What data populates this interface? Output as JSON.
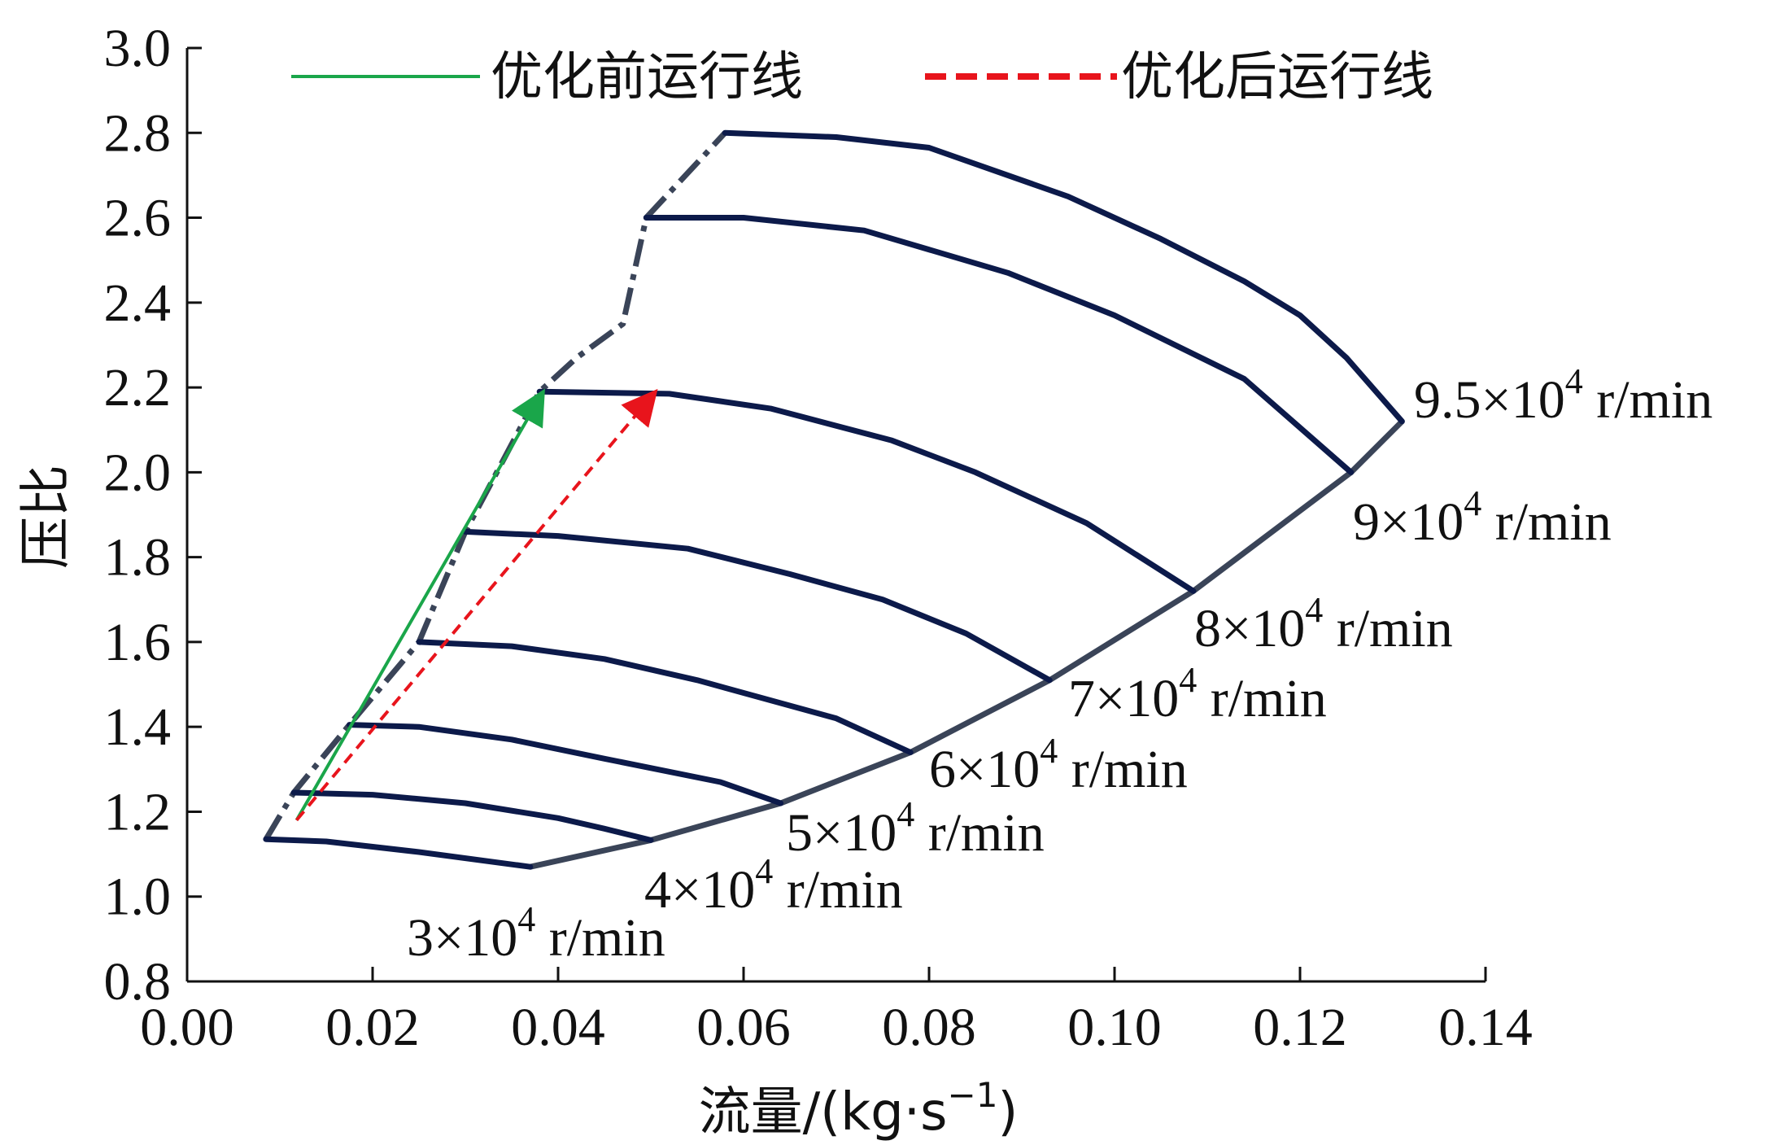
{
  "chart_data": {
    "type": "line",
    "xlabel": "流量/(kg·s",
    "xlabel_sup": "−1",
    "xlabel_suffix": ")",
    "ylabel": "压比",
    "xlim": [
      0.0,
      0.14
    ],
    "ylim": [
      0.8,
      3.0
    ],
    "xticks": [
      "0.00",
      "0.02",
      "0.04",
      "0.06",
      "0.08",
      "0.10",
      "0.12",
      "0.14"
    ],
    "yticks": [
      "0.8",
      "1.0",
      "1.2",
      "1.4",
      "1.6",
      "1.8",
      "2.0",
      "2.2",
      "2.4",
      "2.6",
      "2.8",
      "3.0"
    ],
    "grid": false,
    "legend_position": "top",
    "legend": [
      {
        "label": "优化前运行线",
        "color": "#1aa64a",
        "style": "solid"
      },
      {
        "label": "优化后运行线",
        "color": "#e8141c",
        "style": "dashed"
      }
    ],
    "colors": {
      "speed_line": "#0c1a4a",
      "surge_line": "#3a4458",
      "choke_line": "#3a4458",
      "before_line": "#1aa64a",
      "after_line": "#e8141c"
    },
    "speed_lines": [
      {
        "base": "3×10",
        "exp": "4",
        "unit": " r/min",
        "points": [
          [
            0.0085,
            1.135
          ],
          [
            0.015,
            1.13
          ],
          [
            0.025,
            1.105
          ],
          [
            0.037,
            1.07
          ]
        ]
      },
      {
        "base": "4×10",
        "exp": "4",
        "unit": " r/min",
        "points": [
          [
            0.0115,
            1.245
          ],
          [
            0.02,
            1.24
          ],
          [
            0.03,
            1.22
          ],
          [
            0.04,
            1.185
          ],
          [
            0.045,
            1.16
          ],
          [
            0.05,
            1.133
          ]
        ]
      },
      {
        "base": "5×10",
        "exp": "4",
        "unit": " r/min",
        "points": [
          [
            0.0175,
            1.405
          ],
          [
            0.025,
            1.4
          ],
          [
            0.035,
            1.37
          ],
          [
            0.045,
            1.325
          ],
          [
            0.0575,
            1.27
          ],
          [
            0.064,
            1.22
          ]
        ]
      },
      {
        "base": "6×10",
        "exp": "4",
        "unit": " r/min",
        "points": [
          [
            0.025,
            1.6
          ],
          [
            0.035,
            1.59
          ],
          [
            0.045,
            1.56
          ],
          [
            0.055,
            1.51
          ],
          [
            0.07,
            1.42
          ],
          [
            0.078,
            1.34
          ]
        ]
      },
      {
        "base": "7×10",
        "exp": "4",
        "unit": " r/min",
        "points": [
          [
            0.03,
            1.86
          ],
          [
            0.04,
            1.85
          ],
          [
            0.054,
            1.82
          ],
          [
            0.065,
            1.76
          ],
          [
            0.075,
            1.7
          ],
          [
            0.084,
            1.62
          ],
          [
            0.093,
            1.51
          ]
        ]
      },
      {
        "base": "8×10",
        "exp": "4",
        "unit": " r/min",
        "points": [
          [
            0.038,
            2.19
          ],
          [
            0.052,
            2.185
          ],
          [
            0.063,
            2.15
          ],
          [
            0.076,
            2.075
          ],
          [
            0.085,
            2.0
          ],
          [
            0.097,
            1.88
          ],
          [
            0.1085,
            1.72
          ]
        ]
      },
      {
        "base": "9×10",
        "exp": "4",
        "unit": " r/min",
        "points": [
          [
            0.0495,
            2.6
          ],
          [
            0.06,
            2.6
          ],
          [
            0.073,
            2.57
          ],
          [
            0.0885,
            2.47
          ],
          [
            0.1,
            2.37
          ],
          [
            0.114,
            2.22
          ],
          [
            0.1255,
            2.0
          ]
        ]
      },
      {
        "base": "9.5×10",
        "exp": "4",
        "unit": " r/min",
        "points": [
          [
            0.058,
            2.8
          ],
          [
            0.07,
            2.79
          ],
          [
            0.08,
            2.765
          ],
          [
            0.095,
            2.65
          ],
          [
            0.105,
            2.55
          ],
          [
            0.114,
            2.45
          ],
          [
            0.12,
            2.37
          ],
          [
            0.125,
            2.27
          ],
          [
            0.131,
            2.12
          ]
        ]
      }
    ],
    "surge_line": [
      [
        0.0085,
        1.135
      ],
      [
        0.0115,
        1.245
      ],
      [
        0.0175,
        1.405
      ],
      [
        0.025,
        1.6
      ],
      [
        0.03,
        1.86
      ],
      [
        0.038,
        2.19
      ],
      [
        0.042,
        2.27
      ],
      [
        0.047,
        2.35
      ],
      [
        0.0495,
        2.6
      ],
      [
        0.058,
        2.8
      ]
    ],
    "choke_line": [
      [
        0.037,
        1.07
      ],
      [
        0.05,
        1.133
      ],
      [
        0.064,
        1.22
      ],
      [
        0.078,
        1.34
      ],
      [
        0.093,
        1.51
      ],
      [
        0.1085,
        1.72
      ],
      [
        0.1255,
        2.0
      ],
      [
        0.131,
        2.12
      ]
    ],
    "operating_lines": [
      {
        "name": "优化前运行线",
        "from": [
          0.0118,
          1.18
        ],
        "to": [
          0.0384,
          2.19
        ]
      },
      {
        "name": "优化后运行线",
        "from": [
          0.0118,
          1.18
        ],
        "to": [
          0.0505,
          2.19
        ]
      }
    ]
  }
}
